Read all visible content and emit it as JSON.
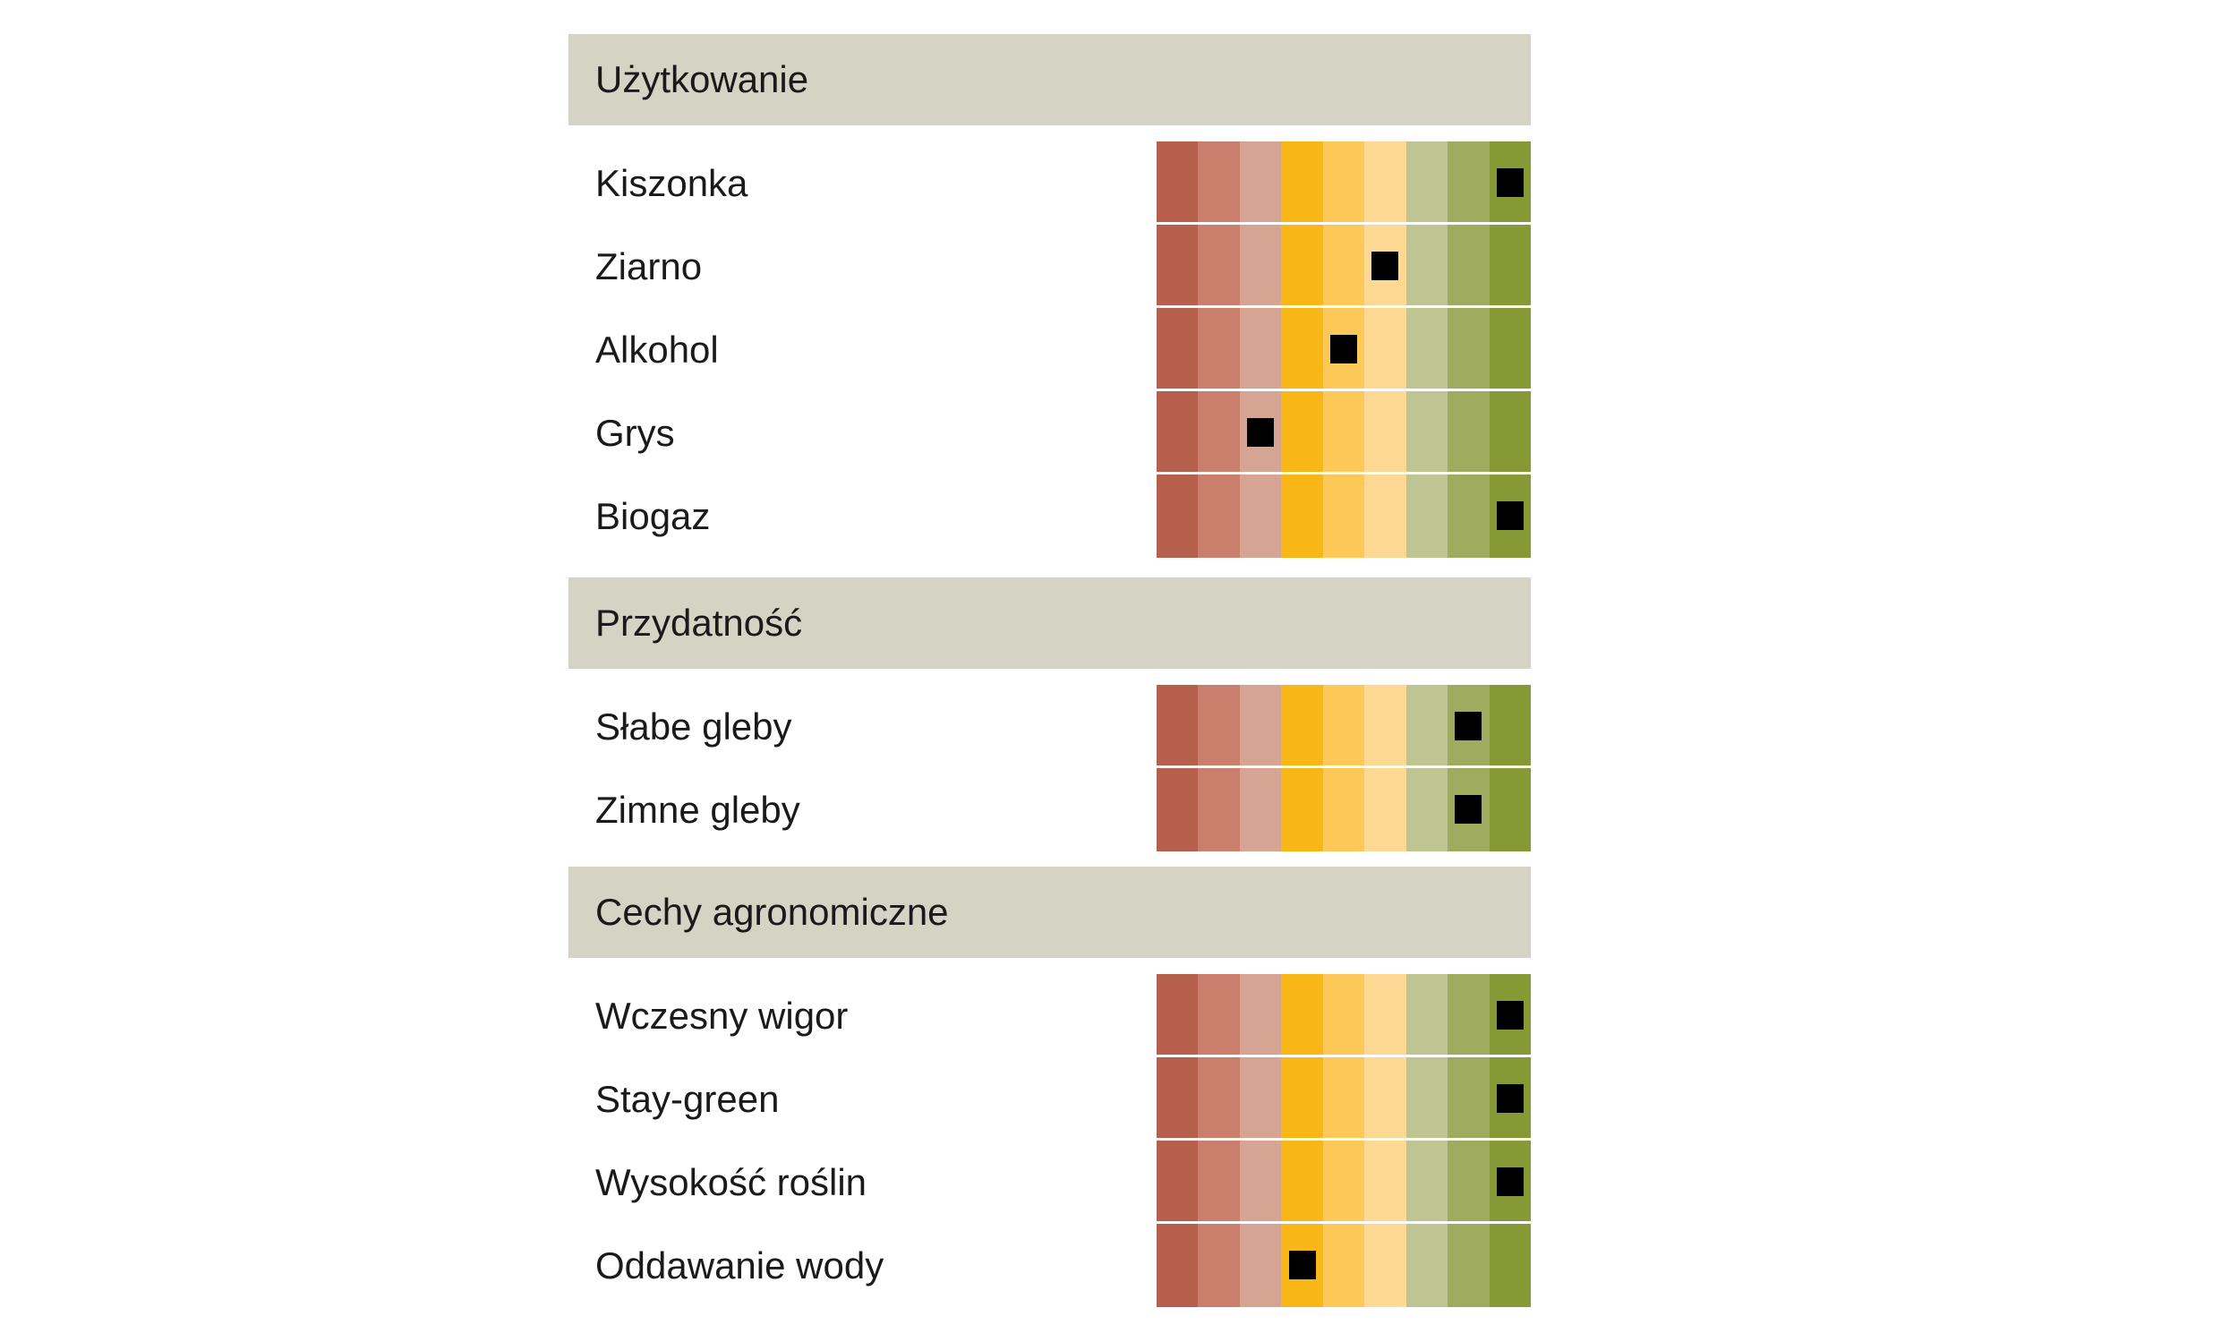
{
  "chart_data": {
    "type": "table",
    "scale": {
      "levels": 9,
      "colors": [
        "#b55f4c",
        "#c97f6c",
        "#d6a493",
        "#f8b617",
        "#fcc858",
        "#fdd993",
        "#bec593",
        "#9fab5f",
        "#869935"
      ]
    },
    "sections": [
      {
        "title": "Użytkowanie",
        "rows": [
          {
            "label": "Kiszonka",
            "value": 9
          },
          {
            "label": "Ziarno",
            "value": 6
          },
          {
            "label": "Alkohol",
            "value": 5
          },
          {
            "label": "Grys",
            "value": 3
          },
          {
            "label": "Biogaz",
            "value": 9
          }
        ]
      },
      {
        "title": "Przydatność",
        "rows": [
          {
            "label": "Słabe gleby",
            "value": 8
          },
          {
            "label": "Zimne gleby",
            "value": 8
          }
        ]
      },
      {
        "title": "Cechy agronomiczne",
        "rows": [
          {
            "label": "Wczesny wigor",
            "value": 9
          },
          {
            "label": "Stay-green",
            "value": 9
          },
          {
            "label": "Wysokość roślin",
            "value": 9
          },
          {
            "label": "Oddawanie wody",
            "value": 4
          }
        ]
      }
    ]
  }
}
